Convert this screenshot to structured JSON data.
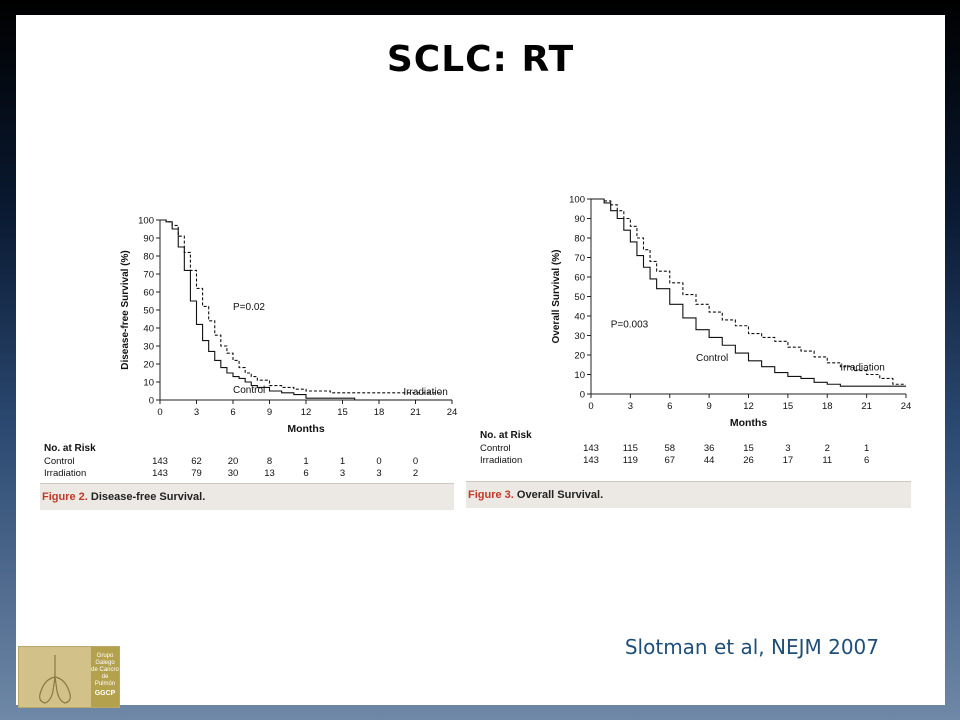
{
  "slide_title": "SCLC: RT",
  "citation": "Slotman et al, NEJM 2007",
  "logo": {
    "lines": [
      "Grupo",
      "Galego",
      "de Cancro",
      "de Pulmón"
    ],
    "short": "GGCP"
  },
  "chart_data": [
    {
      "type": "line",
      "title": "",
      "xlabel": "Months",
      "ylabel": "Disease-free Survival (%)",
      "xlim": [
        0,
        24
      ],
      "ylim": [
        0,
        100
      ],
      "xticks": [
        0,
        3,
        6,
        9,
        12,
        15,
        18,
        21,
        24
      ],
      "yticks": [
        0,
        10,
        20,
        30,
        40,
        50,
        60,
        70,
        80,
        90,
        100
      ],
      "p_value": "P=0.02",
      "series": [
        {
          "name": "Control",
          "style": "solid",
          "points": [
            [
              0,
              100
            ],
            [
              0.5,
              99
            ],
            [
              1,
              95
            ],
            [
              1.5,
              85
            ],
            [
              2,
              72
            ],
            [
              2.5,
              55
            ],
            [
              3,
              42
            ],
            [
              3.5,
              33
            ],
            [
              4,
              27
            ],
            [
              4.5,
              22
            ],
            [
              5,
              18
            ],
            [
              5.5,
              15
            ],
            [
              6,
              13
            ],
            [
              6.5,
              12
            ],
            [
              7,
              10
            ],
            [
              7.5,
              8
            ],
            [
              8,
              7
            ],
            [
              9,
              5
            ],
            [
              10,
              4
            ],
            [
              11,
              3
            ],
            [
              12,
              1
            ],
            [
              13,
              1
            ],
            [
              15,
              1
            ],
            [
              16,
              0
            ],
            [
              24,
              0
            ]
          ]
        },
        {
          "name": "Irradiation",
          "style": "dashed",
          "points": [
            [
              0,
              100
            ],
            [
              0.5,
              99
            ],
            [
              1,
              97
            ],
            [
              1.5,
              91
            ],
            [
              2,
              82
            ],
            [
              2.5,
              72
            ],
            [
              3,
              62
            ],
            [
              3.5,
              52
            ],
            [
              4,
              44
            ],
            [
              4.5,
              36
            ],
            [
              5,
              30
            ],
            [
              5.5,
              26
            ],
            [
              6,
              22
            ],
            [
              6.5,
              18
            ],
            [
              7,
              15
            ],
            [
              7.5,
              13
            ],
            [
              8,
              11
            ],
            [
              9,
              8
            ],
            [
              10,
              7
            ],
            [
              11,
              6
            ],
            [
              12,
              5
            ],
            [
              14,
              4
            ],
            [
              16,
              4
            ],
            [
              18,
              4
            ],
            [
              21,
              4
            ],
            [
              23,
              3
            ]
          ]
        }
      ],
      "risk_table": {
        "heading": "No. at Risk",
        "rows": [
          {
            "label": "Control",
            "values": [
              "143",
              "62",
              "20",
              "8",
              "1",
              "1",
              "0",
              "0"
            ]
          },
          {
            "label": "Irradiation",
            "values": [
              "143",
              "79",
              "30",
              "13",
              "6",
              "3",
              "3",
              "2"
            ]
          }
        ]
      },
      "caption": {
        "number": "Figure 2.",
        "text": "Disease-free Survival."
      }
    },
    {
      "type": "line",
      "title": "",
      "xlabel": "Months",
      "ylabel": "Overall Survival (%)",
      "xlim": [
        0,
        24
      ],
      "ylim": [
        0,
        100
      ],
      "xticks": [
        0,
        3,
        6,
        9,
        12,
        15,
        18,
        21,
        24
      ],
      "yticks": [
        0,
        10,
        20,
        30,
        40,
        50,
        60,
        70,
        80,
        90,
        100
      ],
      "p_value": "P=0.003",
      "series": [
        {
          "name": "Control",
          "style": "solid",
          "points": [
            [
              0,
              100
            ],
            [
              0.5,
              100
            ],
            [
              1,
              98
            ],
            [
              1.5,
              94
            ],
            [
              2,
              90
            ],
            [
              2.5,
              84
            ],
            [
              3,
              78
            ],
            [
              3.5,
              71
            ],
            [
              4,
              65
            ],
            [
              4.5,
              59
            ],
            [
              5,
              54
            ],
            [
              6,
              46
            ],
            [
              7,
              39
            ],
            [
              8,
              33
            ],
            [
              9,
              29
            ],
            [
              10,
              25
            ],
            [
              11,
              21
            ],
            [
              12,
              17
            ],
            [
              13,
              14
            ],
            [
              14,
              11
            ],
            [
              15,
              9
            ],
            [
              16,
              8
            ],
            [
              17,
              6
            ],
            [
              18,
              5
            ],
            [
              19,
              4
            ],
            [
              24,
              4
            ]
          ]
        },
        {
          "name": "Irradiation",
          "style": "dashed",
          "points": [
            [
              0,
              100
            ],
            [
              0.5,
              100
            ],
            [
              1,
              99
            ],
            [
              1.5,
              97
            ],
            [
              2,
              94
            ],
            [
              2.5,
              90
            ],
            [
              3,
              86
            ],
            [
              3.5,
              80
            ],
            [
              4,
              74
            ],
            [
              4.5,
              68
            ],
            [
              5,
              63
            ],
            [
              6,
              57
            ],
            [
              7,
              51
            ],
            [
              8,
              46
            ],
            [
              9,
              42
            ],
            [
              10,
              38
            ],
            [
              11,
              35
            ],
            [
              12,
              31
            ],
            [
              13,
              29
            ],
            [
              14,
              27
            ],
            [
              15,
              24
            ],
            [
              16,
              22
            ],
            [
              17,
              19
            ],
            [
              18,
              16
            ],
            [
              19,
              14
            ],
            [
              20,
              12
            ],
            [
              21,
              10
            ],
            [
              22,
              8
            ],
            [
              23,
              5
            ],
            [
              24,
              5
            ]
          ]
        }
      ],
      "risk_table": {
        "heading": "No. at Risk",
        "rows": [
          {
            "label": "Control",
            "values": [
              "143",
              "115",
              "58",
              "36",
              "15",
              "3",
              "2",
              "1"
            ]
          },
          {
            "label": "Irradiation",
            "values": [
              "143",
              "119",
              "67",
              "44",
              "26",
              "17",
              "11",
              "6"
            ]
          }
        ]
      },
      "caption": {
        "number": "Figure 3.",
        "text": "Overall Survival."
      }
    }
  ]
}
